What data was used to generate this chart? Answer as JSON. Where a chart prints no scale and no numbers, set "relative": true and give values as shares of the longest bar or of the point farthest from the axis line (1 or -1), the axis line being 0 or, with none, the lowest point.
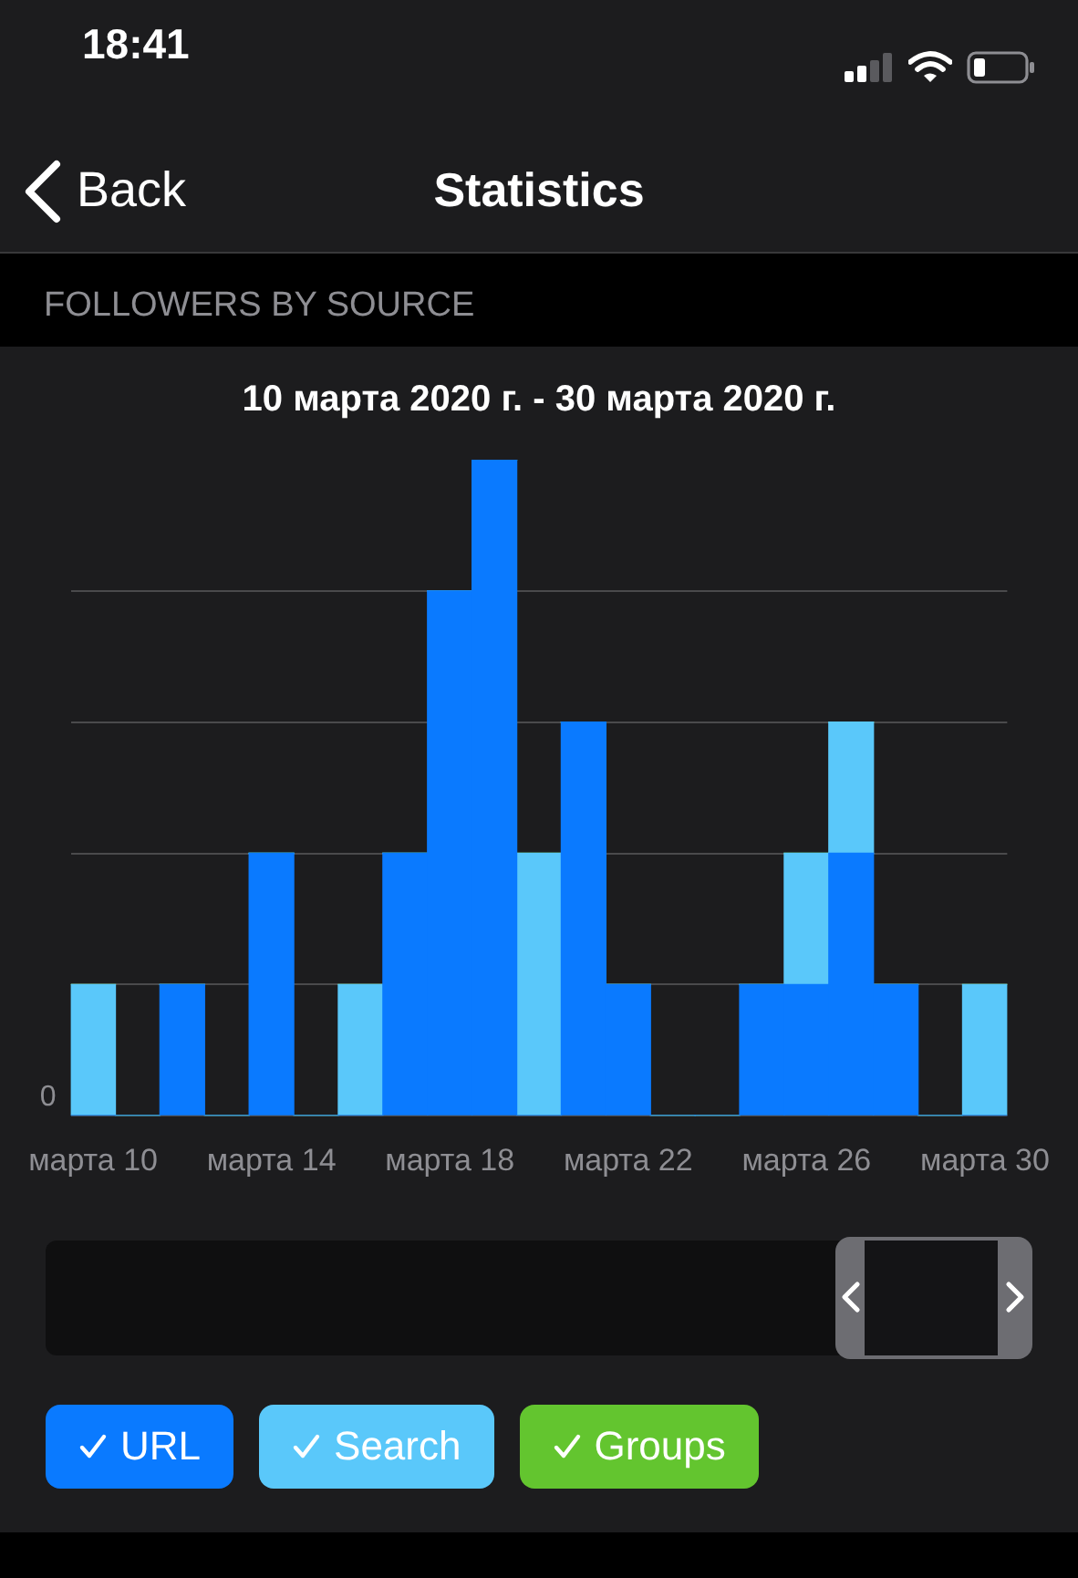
{
  "chart_data": {
    "type": "bar",
    "title": "FOLLOWERS BY SOURCE",
    "subtitle": "10 марта 2020 г. - 30 марта 2020 г.",
    "categories": [
      "марта 10",
      null,
      null,
      null,
      "марта 14",
      null,
      null,
      null,
      "марта 18",
      null,
      null,
      null,
      "марта 22",
      null,
      null,
      null,
      "марта 26",
      null,
      null,
      null,
      "марта 30"
    ],
    "series": [
      {
        "name": "URL",
        "color": "#0a7aff",
        "values": [
          0,
          0,
          0.2,
          0,
          0.4,
          0,
          0,
          0.4,
          0.8,
          1,
          0,
          0.6,
          0.2,
          0,
          0,
          0.2,
          0.2,
          0.4,
          0.2,
          0,
          0
        ]
      },
      {
        "name": "Search",
        "color": "#5ac8fa",
        "values": [
          0.2,
          0,
          0,
          0,
          0,
          0,
          0.2,
          0,
          0,
          0,
          0.4,
          0,
          0,
          0,
          0,
          0,
          0.2,
          0.2,
          0,
          0,
          0.2
        ]
      },
      {
        "name": "Groups",
        "color": "#63c52f",
        "values": [
          0,
          0,
          0,
          0,
          0,
          0,
          0,
          0,
          0,
          0,
          0,
          0,
          0,
          0,
          0,
          0,
          0,
          0,
          0,
          0,
          0
        ]
      }
    ],
    "stacked": true,
    "relative": true,
    "grid": "y",
    "legend": "bottom",
    "annotations": [
      "18:41",
      "Back",
      "Statistics",
      "0"
    ]
  }
}
